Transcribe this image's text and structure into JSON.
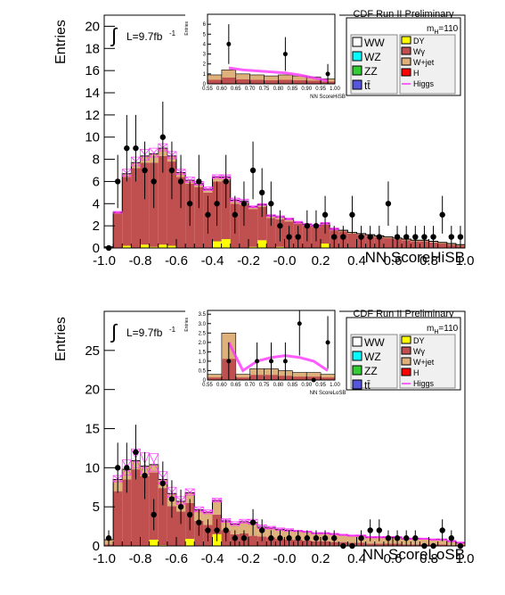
{
  "chart_data": [
    {
      "type": "bar",
      "panel": "top",
      "xlabel": "NN ScoreHiSB",
      "ylabel": "Entries",
      "xlim": [
        -1.0,
        1.0
      ],
      "ylim": [
        0,
        21
      ],
      "xticks": [
        "-1.0",
        "-0.8",
        "-0.6",
        "-0.4",
        "-0.2",
        "-0.0",
        "0.2",
        "0.4",
        "0.6",
        "0.8",
        "1.0"
      ],
      "yticks": [
        "0",
        "2",
        "4",
        "6",
        "8",
        "10",
        "12",
        "14",
        "16",
        "18",
        "20"
      ],
      "header": "CDF Run II Preliminary",
      "mass_label": "110",
      "lumi_label": "L=9.7fb",
      "lumi_exp": "-1",
      "bin_edges": [
        -1.0,
        -0.95,
        -0.9,
        -0.85,
        -0.8,
        -0.75,
        -0.7,
        -0.65,
        -0.6,
        -0.55,
        -0.5,
        -0.45,
        -0.4,
        -0.35,
        -0.3,
        -0.25,
        -0.2,
        -0.15,
        -0.1,
        -0.05,
        0.0,
        0.05,
        0.1,
        0.15,
        0.2,
        0.25,
        0.3,
        0.35,
        0.4,
        0.45,
        0.5,
        0.55,
        0.6,
        0.65,
        0.7,
        0.75,
        0.8,
        0.85,
        0.9,
        0.95,
        1.0
      ],
      "series": [
        {
          "name": "Wγ",
          "values": [
            0.1,
            3.1,
            6.2,
            7.2,
            7.4,
            7.6,
            8.0,
            7.6,
            6.4,
            5.8,
            5.5,
            5.0,
            5.4,
            5.3,
            4.0,
            3.9,
            3.4,
            3.0,
            2.7,
            2.5,
            2.4,
            2.2,
            2.0,
            1.9,
            1.7,
            1.6,
            1.5,
            1.3,
            1.2,
            1.1,
            1.0,
            0.9,
            0.8,
            0.7,
            0.6,
            0.6,
            0.5,
            0.4,
            0.3,
            0.2
          ],
          "color": "#c05050"
        },
        {
          "name": "W+jet",
          "values": [
            0,
            0.1,
            0.3,
            0.5,
            0.6,
            0.8,
            0.7,
            0.5,
            0.4,
            0.3,
            0.3,
            0.3,
            0.4,
            0.3,
            0.3,
            0.3,
            0.2,
            0.2,
            0.2,
            0.2,
            0.2,
            0.1,
            0.1,
            0.1,
            0.1,
            0.1,
            0.1,
            0.1,
            0.1,
            0.1,
            0.1,
            0.1,
            0.1,
            0.1,
            0.1,
            0.1,
            0.1,
            0.1,
            0.1,
            0.1
          ],
          "color": "#deb07a"
        },
        {
          "name": "DY",
          "values": [
            0,
            0,
            0.2,
            0,
            0.3,
            0.1,
            0.3,
            0.2,
            0,
            0,
            0,
            0,
            0.6,
            0.8,
            0,
            0,
            0.1,
            0.7,
            0,
            0.1,
            0,
            0,
            0,
            0,
            0.4,
            0,
            0,
            0,
            0,
            0,
            0,
            0,
            0,
            0,
            0,
            0,
            0,
            0,
            0,
            0
          ],
          "color": "#ffff00"
        },
        {
          "name": "Higgs",
          "values": [
            0,
            0.1,
            0.4,
            0.5,
            0.6,
            0.5,
            0.4,
            0.4,
            0.3,
            0.3,
            0.2,
            0.2,
            0.2,
            0.2,
            0.2,
            0.2,
            0.1,
            0.1,
            0.1,
            0.1,
            0.1,
            0.1,
            0.1,
            0.1,
            0.1,
            0.1,
            0,
            0,
            0,
            0,
            0,
            0,
            0,
            0,
            0,
            0,
            0,
            0,
            0,
            0
          ],
          "color": "#ff33ff"
        }
      ],
      "points": {
        "x": [
          -0.975,
          -0.925,
          -0.875,
          -0.825,
          -0.775,
          -0.725,
          -0.675,
          -0.625,
          -0.575,
          -0.525,
          -0.475,
          -0.425,
          -0.375,
          -0.325,
          -0.275,
          -0.225,
          -0.175,
          -0.125,
          -0.075,
          -0.025,
          0.025,
          0.075,
          0.125,
          0.175,
          0.225,
          0.275,
          0.325,
          0.375,
          0.425,
          0.475,
          0.525,
          0.575,
          0.625,
          0.675,
          0.725,
          0.775,
          0.825,
          0.875,
          0.925,
          0.975
        ],
        "y": [
          0,
          6,
          9,
          9,
          7,
          6,
          10,
          7,
          6,
          4,
          6,
          3,
          4,
          6,
          3,
          4,
          7,
          5,
          4,
          2,
          1,
          1,
          2,
          2,
          3,
          1,
          1,
          3,
          1,
          1,
          1,
          4,
          1,
          1,
          1,
          1,
          1,
          3,
          1,
          1
        ],
        "err": [
          0,
          2.4,
          3,
          3,
          2.6,
          2.4,
          3.2,
          2.6,
          2.4,
          2,
          2.4,
          1.7,
          2,
          2.4,
          1.7,
          2,
          2.6,
          2.2,
          2,
          1.4,
          1,
          1,
          1.4,
          1.4,
          1.7,
          1,
          1,
          1.7,
          1,
          1,
          1,
          2,
          1,
          1,
          1,
          1,
          1,
          1.7,
          1,
          1
        ]
      },
      "inset": {
        "xlabel": "NN ScoreHiSB",
        "ylabel": "Entries",
        "xlim": [
          0.55,
          1.0
        ],
        "ylim": [
          0,
          7
        ],
        "xticks": [
          "0.55",
          "0.60",
          "0.65",
          "0.70",
          "0.75",
          "0.80",
          "0.85",
          "0.90",
          "0.95",
          "1.00"
        ],
        "yticks": [
          "0",
          "1",
          "2",
          "3",
          "4",
          "5",
          "6"
        ],
        "points_x": [
          0.625,
          0.825,
          0.975
        ],
        "points_y": [
          4,
          3,
          1
        ],
        "points_err": [
          2,
          1.7,
          1
        ],
        "bg_values": [
          0.9,
          1.4,
          1.0,
          0.9,
          0.8,
          0.9,
          0.8,
          0.7,
          0.5
        ],
        "higgs_values": [
          0,
          1.6,
          1.4,
          1.3,
          1.2,
          1.1,
          0.9,
          0.6,
          0.3
        ]
      }
    },
    {
      "type": "bar",
      "panel": "bottom",
      "xlabel": "NN ScoreLoSB",
      "ylabel": "Entries",
      "xlim": [
        -1.0,
        1.0
      ],
      "ylim": [
        0,
        30
      ],
      "xticks": [
        "-1.0",
        "-0.8",
        "-0.6",
        "-0.4",
        "-0.2",
        "-0.0",
        "0.2",
        "0.4",
        "0.6",
        "0.8",
        "1.0"
      ],
      "yticks": [
        "0",
        "5",
        "10",
        "15",
        "20",
        "25"
      ],
      "header": "CDF Run II Preliminary",
      "mass_label": "110",
      "lumi_label": "L=9.7fb",
      "lumi_exp": "-1",
      "bin_edges": [
        -1.0,
        -0.95,
        -0.9,
        -0.85,
        -0.8,
        -0.75,
        -0.7,
        -0.65,
        -0.6,
        -0.55,
        -0.5,
        -0.45,
        -0.4,
        -0.35,
        -0.3,
        -0.25,
        -0.2,
        -0.15,
        -0.1,
        -0.05,
        0.0,
        0.05,
        0.1,
        0.15,
        0.2,
        0.25,
        0.3,
        0.35,
        0.4,
        0.45,
        0.5,
        0.55,
        0.6,
        0.65,
        0.7,
        0.75,
        0.8,
        0.85,
        0.9,
        0.95,
        1.0
      ],
      "series": [
        {
          "name": "Wγ",
          "values": [
            0.2,
            7.0,
            8.5,
            9.8,
            8.9,
            8.6,
            7.3,
            5.1,
            4.4,
            4.6,
            3.2,
            2.7,
            2.5,
            2.0,
            1.5,
            1.6,
            1.3,
            1.2,
            1.1,
            0.9,
            0.8,
            0.8,
            0.7,
            0.6,
            0.6,
            0.5,
            0.5,
            0.4,
            0.4,
            0.3,
            0.3,
            0.3,
            0.3,
            0.2,
            0.2,
            0.2,
            0.2,
            0.2,
            0.1,
            0.1
          ],
          "color": "#c05050"
        },
        {
          "name": "W+jet",
          "values": [
            0.6,
            1.5,
            1.3,
            1.1,
            1.3,
            1.0,
            1.1,
            1.6,
            1.3,
            1.3,
            1.4,
            1.6,
            1.8,
            1.2,
            1.3,
            1.5,
            1.7,
            1.2,
            1.2,
            1.2,
            1.2,
            1.1,
            1.1,
            1.0,
            1.0,
            1.0,
            0.9,
            0.9,
            0.9,
            0.8,
            0.8,
            0.8,
            0.8,
            0.7,
            0.7,
            0.7,
            0.6,
            0.6,
            0.5,
            0.3
          ],
          "color": "#deb07a"
        },
        {
          "name": "DY",
          "values": [
            0,
            0,
            0,
            0,
            0,
            0.8,
            0.1,
            0,
            0,
            0.9,
            0,
            0,
            1.5,
            0,
            0,
            0,
            0,
            0,
            0,
            0,
            0,
            0,
            0,
            0,
            0,
            0,
            0,
            0,
            0,
            0,
            0,
            0,
            0,
            0,
            0,
            0,
            0,
            0,
            0,
            0
          ],
          "color": "#ffff00"
        },
        {
          "name": "Higgs",
          "values": [
            0,
            0.5,
            1.2,
            1.5,
            1.7,
            1.4,
            1.0,
            0.8,
            0.6,
            0.5,
            0.4,
            0.3,
            0.3,
            0.3,
            0.3,
            0.3,
            0.4,
            0.3,
            0.2,
            0.2,
            0.2,
            0.1,
            0.1,
            0.1,
            0.1,
            0.1,
            0.1,
            0.1,
            0.1,
            0.1,
            0.1,
            0.1,
            0.1,
            0.1,
            0.1,
            0.1,
            0.1,
            0.1,
            0.1,
            0.1
          ],
          "color": "#ff33ff"
        }
      ],
      "points": {
        "x": [
          -0.975,
          -0.925,
          -0.875,
          -0.825,
          -0.775,
          -0.725,
          -0.675,
          -0.625,
          -0.575,
          -0.525,
          -0.475,
          -0.425,
          -0.375,
          -0.325,
          -0.275,
          -0.225,
          -0.175,
          -0.125,
          -0.075,
          -0.025,
          0.025,
          0.075,
          0.125,
          0.175,
          0.225,
          0.275,
          0.325,
          0.375,
          0.425,
          0.475,
          0.525,
          0.575,
          0.625,
          0.675,
          0.725,
          0.775,
          0.825,
          0.875,
          0.925,
          0.975
        ],
        "y": [
          1,
          10,
          10,
          12,
          9,
          4,
          8,
          6,
          5,
          4,
          3,
          2,
          2,
          2,
          1,
          1,
          3,
          2,
          1,
          1,
          1,
          1,
          1,
          1,
          1,
          1,
          0,
          0,
          1,
          2,
          2,
          1,
          1,
          1,
          1,
          0,
          0,
          2,
          1,
          0
        ],
        "err": [
          1,
          3.2,
          3.2,
          3.5,
          3,
          2,
          2.8,
          2.4,
          2.2,
          2,
          1.7,
          1.4,
          1.4,
          1.4,
          1,
          1,
          1.7,
          1.4,
          1,
          1,
          1,
          1,
          1,
          1,
          1,
          1,
          0,
          0,
          1,
          1.4,
          1.4,
          1,
          1,
          1,
          1,
          0,
          0,
          1.4,
          1,
          0
        ]
      },
      "inset": {
        "xlabel": "NN ScoreLoSB",
        "ylabel": "Entries",
        "xlim": [
          0.55,
          1.0
        ],
        "ylim": [
          0,
          3.7
        ],
        "xticks": [
          "0.55",
          "0.60",
          "0.65",
          "0.70",
          "0.75",
          "0.80",
          "0.85",
          "0.90",
          "0.95",
          "1.00"
        ],
        "yticks": [
          "0",
          "0.5",
          "1.0",
          "1.5",
          "2.0",
          "2.5",
          "3.0",
          "3.5"
        ],
        "points_x": [
          0.625,
          0.725,
          0.775,
          0.825,
          0.875,
          0.925,
          0.975
        ],
        "points_y": [
          1,
          1,
          1,
          1,
          3,
          0,
          2
        ],
        "points_err": [
          1,
          1,
          1,
          1,
          1.7,
          0,
          1.4
        ],
        "bg_values": [
          0.3,
          2.5,
          0.3,
          0.6,
          0.6,
          0.5,
          0.4,
          0.4,
          0.3
        ],
        "higgs_values": [
          0,
          2.0,
          0.5,
          1.0,
          1.2,
          1.3,
          1.2,
          1.0,
          0.5
        ]
      }
    }
  ],
  "legend": {
    "left": [
      {
        "label": "WW",
        "color": "#ffffff"
      },
      {
        "label": "WZ",
        "color": "#00ffff"
      },
      {
        "label": "ZZ",
        "color": "#33cc33"
      },
      {
        "label": "tt̄",
        "color": "#5555dd"
      }
    ],
    "right": [
      {
        "label": "DY",
        "color": "#ffff00"
      },
      {
        "label": "Wγ",
        "color": "#c05050"
      },
      {
        "label": "W+jet",
        "color": "#deb07a"
      },
      {
        "label": "H",
        "color": "#ff0000"
      },
      {
        "label": "Higgs",
        "color": "#ff33ff"
      }
    ],
    "mass_prefix": "m",
    "mass_sub": "H"
  }
}
